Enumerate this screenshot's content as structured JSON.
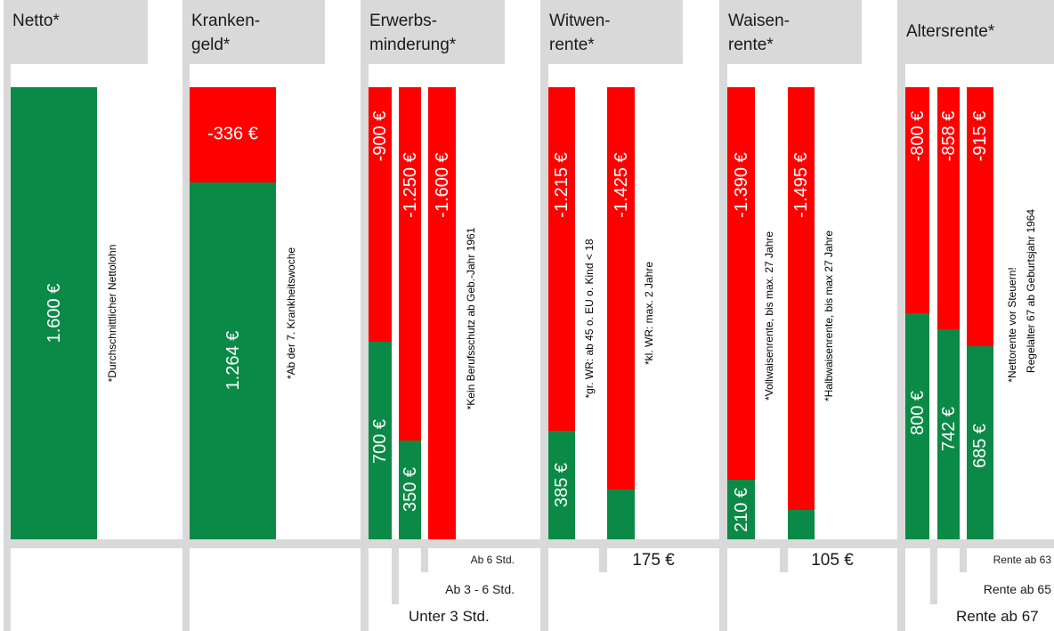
{
  "headers": {
    "netto": {
      "l1": "Netto*",
      "l2": ""
    },
    "krankengeld": {
      "l1": "Kranken-",
      "l2": "geld*"
    },
    "em": {
      "l1": "Erwerbs-",
      "l2": "minderung*"
    },
    "witwen": {
      "l1": "Witwen-",
      "l2": "rente*"
    },
    "waisen": {
      "l1": "Waisen-",
      "l2": "rente*"
    },
    "alters": {
      "l1": "Altersrente*",
      "l2": ""
    }
  },
  "notes": {
    "netto": "*Durchschnittlicher Nettolohn",
    "krankengeld": "*Ab der 7. Krankheitswoche",
    "em": "*Kein Berufsschutz ab Geb.-Jahr 1961",
    "witwen_gr": "*gr. WR: ab 45 o. EU o. Kind < 18",
    "witwen_kl": "*kl. WR: max. 2 Jahre",
    "waisen_voll": "*Vollwaisenrente, bis max. 27 Jahre",
    "waisen_halb": "*Halbwaisenrente, bis max 27 Jahre",
    "alters_1": "*Nettorente vor Steuern!",
    "alters_2": "Regelalter 67 ab Geburtsjahr 1964"
  },
  "bottom_labels": {
    "em_6": "Ab 6 Std.",
    "em_3_6": "Ab 3 - 6 Std.",
    "em_u3": "Unter  3 Std.",
    "witwen_kl": "175 €",
    "waisen_halb": "105 €",
    "rente_63": "Rente ab 63",
    "rente_65": "Rente ab 65",
    "rente_67": "Rente ab 67"
  },
  "colors": {
    "benefit": "#0a8a46",
    "gap": "#ff0000",
    "panel": "#d9d9d9"
  },
  "chart_data": {
    "type": "bar",
    "stacked": true,
    "unit": "€",
    "reference_value": 1600,
    "bars": [
      {
        "group": "Netto",
        "green": 1600,
        "green_label": "1.600 €",
        "red": 0,
        "red_label": ""
      },
      {
        "group": "Krankengeld",
        "green": 1264,
        "green_label": "1.264 €",
        "red": 336,
        "red_label": "-336 €"
      },
      {
        "group": "Erwerbsminderung",
        "category": "Unter 3 Std.",
        "green": 700,
        "green_label": "700 €",
        "red": 900,
        "red_label": "-900 €"
      },
      {
        "group": "Erwerbsminderung",
        "category": "Ab 3 - 6 Std.",
        "green": 350,
        "green_label": "350 €",
        "red": 1250,
        "red_label": "-1.250 €"
      },
      {
        "group": "Erwerbsminderung",
        "category": "Ab 6 Std.",
        "green": 0,
        "green_label": "",
        "red": 1600,
        "red_label": "-1.600 €"
      },
      {
        "group": "Witwenrente",
        "category": "gr. WR",
        "green": 385,
        "green_label": "385 €",
        "red": 1215,
        "red_label": "-1.215 €"
      },
      {
        "group": "Witwenrente",
        "category": "kl. WR",
        "green": 175,
        "green_label": "",
        "red": 1425,
        "red_label": "-1.425 €"
      },
      {
        "group": "Waisenrente",
        "category": "Vollwaisenrente",
        "green": 210,
        "green_label": "210 €",
        "red": 1390,
        "red_label": "-1.390 €"
      },
      {
        "group": "Waisenrente",
        "category": "Halbwaisenrente",
        "green": 105,
        "green_label": "",
        "red": 1495,
        "red_label": "-1.495 €"
      },
      {
        "group": "Altersrente",
        "category": "Rente ab 67",
        "green": 800,
        "green_label": "800 €",
        "red": 800,
        "red_label": "-800 €"
      },
      {
        "group": "Altersrente",
        "category": "Rente ab 65",
        "green": 742,
        "green_label": "742 €",
        "red": 858,
        "red_label": "-858 €"
      },
      {
        "group": "Altersrente",
        "category": "Rente ab 63",
        "green": 685,
        "green_label": "685 €",
        "red": 915,
        "red_label": "-915 €"
      }
    ]
  }
}
